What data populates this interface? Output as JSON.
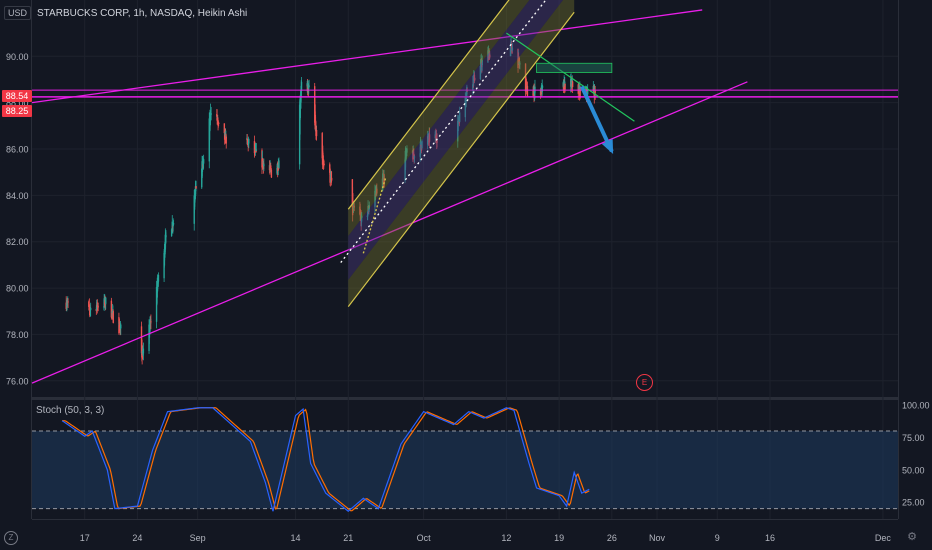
{
  "header": {
    "currency": "USD",
    "title": "STARBUCKS CORP, 1h, NASDAQ, Heikin Ashi"
  },
  "price_badges": {
    "upper": "88.54",
    "lower": "88.25"
  },
  "indicator_label": "Stoch (50, 3, 3)",
  "earnings_marker": "E",
  "timezone_icon": "Z",
  "colors": {
    "bg": "#131722",
    "up": "#26a69a",
    "down": "#ef5350",
    "magenta": "#e91ee9",
    "channel": "#d4c44b",
    "stoch_k": "#2962ff",
    "stoch_d": "#ff6d00",
    "arrow": "#2a8bd6",
    "green_line": "#22c55e",
    "badge": "#f23645"
  },
  "chart_data": [
    {
      "type": "candlestick",
      "title": "STARBUCKS CORP, 1h, NASDAQ, Heikin Ashi",
      "ylabel": "USD",
      "ylim": [
        75.3,
        92.3
      ],
      "y_ticks": [
        "76.00",
        "78.00",
        "80.00",
        "82.00",
        "84.00",
        "86.00",
        "88.00",
        "90.00"
      ],
      "x_ticks": [
        "17",
        "24",
        "Sep",
        "14",
        "21",
        "Oct",
        "12",
        "19",
        "26",
        "Nov",
        "9",
        "16",
        "Dec"
      ],
      "x_tick_dates": [
        "2020-08-17",
        "2020-08-24",
        "2020-09-01",
        "2020-09-14",
        "2020-09-21",
        "2020-10-01",
        "2020-10-12",
        "2020-10-19",
        "2020-10-26",
        "2020-11-01",
        "2020-11-09",
        "2020-11-16",
        "2020-12-01"
      ],
      "price_path": [
        [
          "2020-08-14",
          79.5
        ],
        [
          "2020-08-17",
          78.8
        ],
        [
          "2020-08-18",
          79.2
        ],
        [
          "2020-08-20",
          79.4
        ],
        [
          "2020-08-21",
          78.6
        ],
        [
          "2020-08-24",
          77.1
        ],
        [
          "2020-08-25",
          77.2
        ],
        [
          "2020-08-27",
          80.8
        ],
        [
          "2020-08-28",
          82.6
        ],
        [
          "2020-08-31",
          83.6
        ],
        [
          "2020-09-01",
          84.6
        ],
        [
          "2020-09-02",
          85.7
        ],
        [
          "2020-09-03",
          88.3
        ],
        [
          "2020-09-04",
          86.5
        ],
        [
          "2020-09-08",
          86.2
        ],
        [
          "2020-09-09",
          85.6
        ],
        [
          "2020-09-10",
          85.3
        ],
        [
          "2020-09-11",
          84.9
        ],
        [
          "2020-09-14",
          86.9
        ],
        [
          "2020-09-15",
          89.1
        ],
        [
          "2020-09-16",
          88.4
        ],
        [
          "2020-09-17",
          86.0
        ],
        [
          "2020-09-18",
          85.2
        ],
        [
          "2020-09-21",
          82.9
        ],
        [
          "2020-09-22",
          83.5
        ],
        [
          "2020-09-23",
          82.7
        ],
        [
          "2020-09-24",
          83.8
        ],
        [
          "2020-09-25",
          84.4
        ],
        [
          "2020-09-28",
          85.8
        ],
        [
          "2020-09-30",
          85.7
        ],
        [
          "2020-10-01",
          86.4
        ],
        [
          "2020-10-05",
          86.7
        ],
        [
          "2020-10-06",
          87.6
        ],
        [
          "2020-10-07",
          88.9
        ],
        [
          "2020-10-08",
          89.2
        ],
        [
          "2020-10-09",
          89.9
        ],
        [
          "2020-10-12",
          90.8
        ],
        [
          "2020-10-13",
          90.2
        ],
        [
          "2020-10-14",
          89.4
        ],
        [
          "2020-10-15",
          88.2
        ],
        [
          "2020-10-16",
          88.6
        ],
        [
          "2020-10-19",
          88.4
        ],
        [
          "2020-10-20",
          88.9
        ],
        [
          "2020-10-21",
          88.7
        ],
        [
          "2020-10-22",
          88.4
        ],
        [
          "2020-10-23",
          88.5
        ]
      ],
      "horizontal_levels": [
        88.54,
        88.25
      ]
    },
    {
      "type": "line",
      "title": "Stoch (50, 3, 3)",
      "ylim": [
        12,
        104
      ],
      "y_ticks": [
        "100.00",
        "75.00",
        "50.00",
        "25.00"
      ],
      "bands": [
        20,
        80
      ],
      "series": [
        {
          "name": "%K",
          "values": [
            [
              "2020-08-14",
              88
            ],
            [
              "2020-08-17",
              76
            ],
            [
              "2020-08-18",
              80
            ],
            [
              "2020-08-20",
              50
            ],
            [
              "2020-08-21",
              20
            ],
            [
              "2020-08-24",
              22
            ],
            [
              "2020-08-26",
              65
            ],
            [
              "2020-08-28",
              95
            ],
            [
              "2020-09-01",
              98
            ],
            [
              "2020-09-03",
              98
            ],
            [
              "2020-09-08",
              72
            ],
            [
              "2020-09-10",
              40
            ],
            [
              "2020-09-11",
              18
            ],
            [
              "2020-09-14",
              92
            ],
            [
              "2020-09-15",
              97
            ],
            [
              "2020-09-16",
              55
            ],
            [
              "2020-09-18",
              32
            ],
            [
              "2020-09-21",
              18
            ],
            [
              "2020-09-23",
              28
            ],
            [
              "2020-09-25",
              20
            ],
            [
              "2020-09-28",
              70
            ],
            [
              "2020-10-01",
              95
            ],
            [
              "2020-10-05",
              85
            ],
            [
              "2020-10-07",
              95
            ],
            [
              "2020-10-09",
              90
            ],
            [
              "2020-10-12",
              98
            ],
            [
              "2020-10-13",
              96
            ],
            [
              "2020-10-15",
              55
            ],
            [
              "2020-10-16",
              36
            ],
            [
              "2020-10-19",
              30
            ],
            [
              "2020-10-20",
              22
            ],
            [
              "2020-10-21",
              48
            ],
            [
              "2020-10-22",
              32
            ],
            [
              "2020-10-23",
              35
            ]
          ]
        }
      ]
    }
  ]
}
